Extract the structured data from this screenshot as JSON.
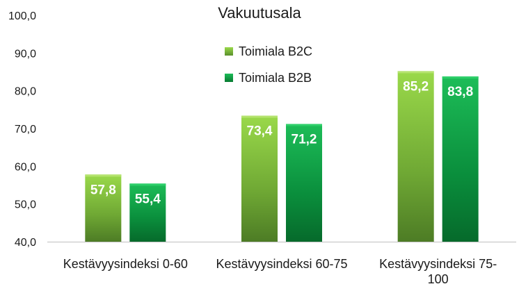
{
  "chart_data": {
    "type": "bar",
    "title": "Vakuutusala",
    "xlabel": "",
    "ylabel": "",
    "ylim": [
      40,
      100
    ],
    "yticks": [
      "40,0",
      "50,0",
      "60,0",
      "70,0",
      "80,0",
      "90,0",
      "100,0"
    ],
    "categories": [
      [
        "Kestävyysindeksi 0-60"
      ],
      [
        "Kestävyysindeksi 60-75"
      ],
      [
        "Kestävyysindeksi 75-",
        "100"
      ]
    ],
    "series": [
      {
        "name": "Toimiala B2C",
        "color": "#7cc23a",
        "values": [
          57.8,
          73.4,
          85.2
        ],
        "labels": [
          "57,8",
          "73,4",
          "85,2"
        ]
      },
      {
        "name": "Toimiala B2B",
        "color": "#11a54a",
        "values": [
          55.4,
          71.2,
          83.8
        ],
        "labels": [
          "55,4",
          "71,2",
          "83,8"
        ]
      }
    ],
    "legend": "top-center",
    "grid": false
  }
}
